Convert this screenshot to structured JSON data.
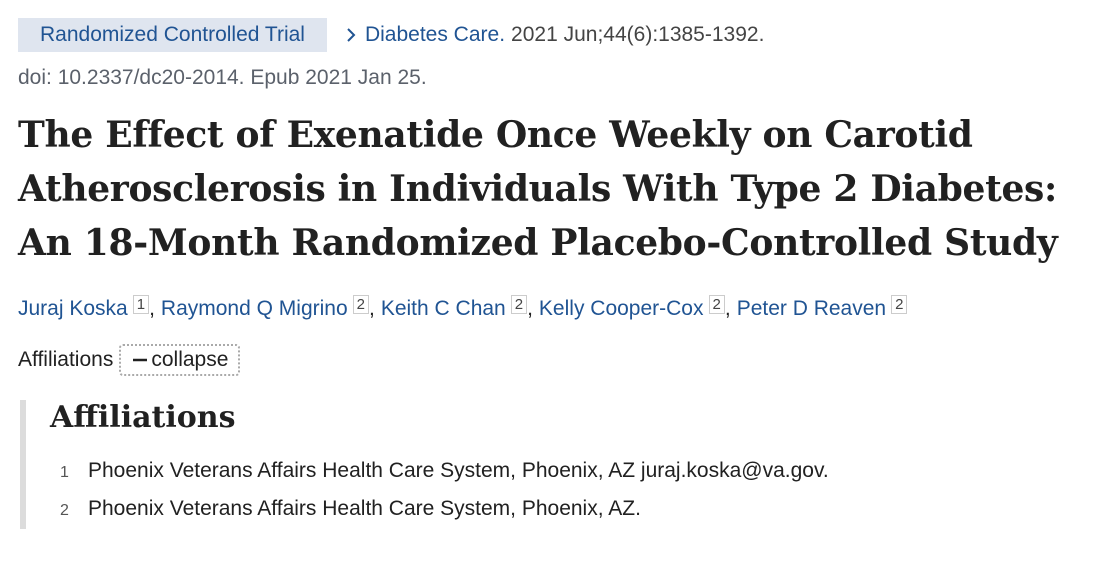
{
  "publication_type": "Randomized Controlled Trial",
  "citation": {
    "journal": "Diabetes Care.",
    "details": "2021 Jun;44(6):1385-1392."
  },
  "doi": "doi: 10.2337/dc20-2014. Epub 2021 Jan 25.",
  "title": "The Effect of Exenatide Once Weekly on Carotid Atherosclerosis in Individuals With Type 2 Diabetes: An 18-Month Randomized Placebo-Controlled Study",
  "authors": [
    {
      "name": "Juraj Koska",
      "affiliation": 1
    },
    {
      "name": "Raymond Q Migrino",
      "affiliation": 2
    },
    {
      "name": "Keith C Chan",
      "affiliation": 2
    },
    {
      "name": "Kelly Cooper-Cox",
      "affiliation": 2
    },
    {
      "name": "Peter D Reaven",
      "affiliation": 2
    }
  ],
  "affiliations_toggle": {
    "label": "Affiliations",
    "button": "collapse"
  },
  "affiliations": {
    "heading": "Affiliations",
    "items": [
      {
        "number": 1,
        "text": "Phoenix Veterans Affairs Health Care System, Phoenix, AZ juraj.koska@va.gov."
      },
      {
        "number": 2,
        "text": "Phoenix Veterans Affairs Health Care System, Phoenix, AZ."
      }
    ]
  }
}
